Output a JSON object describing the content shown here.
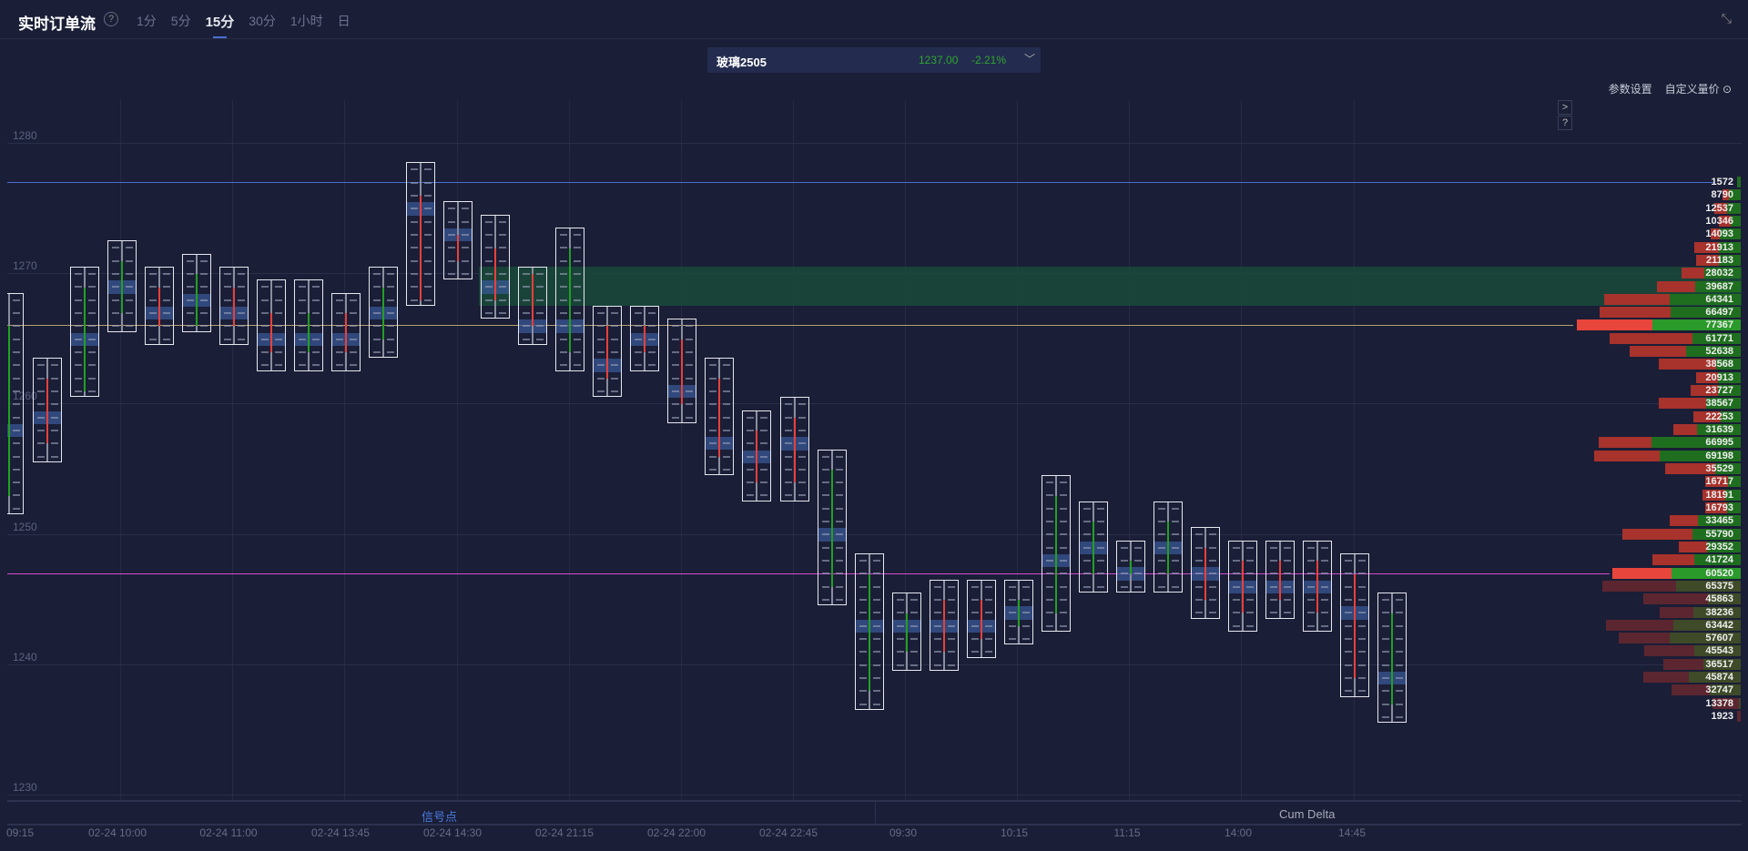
{
  "header": {
    "title": "实时订单流",
    "help_icon": "question-circle-icon",
    "tabs": [
      {
        "label": "1分"
      },
      {
        "label": "5分"
      },
      {
        "label": "15分",
        "active": true
      },
      {
        "label": "30分"
      },
      {
        "label": "1小时"
      },
      {
        "label": "日"
      }
    ],
    "compress_icon": "compress-icon"
  },
  "ticker": {
    "name": "玻璃2505",
    "price": "1237.00",
    "change": "-2.21%",
    "dropdown_icon": "chevron-down-icon"
  },
  "toolbar": {
    "params": "参数设置",
    "custom": "自定义量价",
    "custom_icon": "settings-circle-icon",
    "expand": ">",
    "help": "?"
  },
  "colors": {
    "bg": "#1a1e36",
    "buy": "#1f6e1f",
    "sell": "#a8322c",
    "poc_buy": "#2a9a2a",
    "poc_sell": "#e8463c",
    "zone": "#1a4a3a",
    "blue_line": "#4a6fd1",
    "poc_line": "#b8a070",
    "magenta_line": "#d24ad2"
  },
  "y_axis": {
    "labels": [
      "1280",
      "1270",
      "1260",
      "1250",
      "1240",
      "1230"
    ]
  },
  "x_axis": {
    "labels": [
      "09:15",
      "02-24 10:00",
      "02-24 11:00",
      "02-24 13:45",
      "02-24 14:30",
      "02-24 21:15",
      "02-24 22:00",
      "02-24 22:45",
      "09:30",
      "10:15",
      "11:15",
      "14:00",
      "14:45"
    ]
  },
  "bottom_tabs": {
    "signal": "信号点",
    "cum_delta": "Cum Delta"
  },
  "chart_data": {
    "type": "footprint",
    "ylim": [
      1229,
      1282
    ],
    "lines": {
      "blue": 1277,
      "poc": 1266,
      "magenta": 1247
    },
    "zone": [
      1268,
      1270
    ],
    "candles": [
      [
        1268,
        1252,
        1253,
        1266,
        1258
      ],
      [
        1263,
        1256,
        1262,
        1257,
        1259
      ],
      [
        1270,
        1261,
        1261,
        1269,
        1265
      ],
      [
        1272,
        1266,
        1267,
        1271,
        1269
      ],
      [
        1270,
        1265,
        1269,
        1266,
        1267
      ],
      [
        1271,
        1266,
        1266,
        1270,
        1268
      ],
      [
        1270,
        1265,
        1269,
        1266,
        1267
      ],
      [
        1269,
        1263,
        1267,
        1264,
        1265
      ],
      [
        1269,
        1263,
        1264,
        1267,
        1265
      ],
      [
        1268,
        1263,
        1267,
        1264,
        1265
      ],
      [
        1270,
        1264,
        1265,
        1269,
        1267
      ],
      [
        1278,
        1268,
        1276,
        1268,
        1275
      ],
      [
        1275,
        1270,
        1273,
        1271,
        1273
      ],
      [
        1274,
        1267,
        1272,
        1268,
        1269
      ],
      [
        1270,
        1265,
        1270,
        1266,
        1266
      ],
      [
        1273,
        1263,
        1264,
        1272,
        1266
      ],
      [
        1267,
        1261,
        1266,
        1262,
        1263
      ],
      [
        1267,
        1263,
        1266,
        1264,
        1265
      ],
      [
        1266,
        1259,
        1265,
        1260,
        1261
      ],
      [
        1263,
        1255,
        1262,
        1256,
        1257
      ],
      [
        1259,
        1253,
        1258,
        1254,
        1256
      ],
      [
        1260,
        1253,
        1259,
        1254,
        1257
      ],
      [
        1256,
        1245,
        1246,
        1255,
        1250
      ],
      [
        1248,
        1237,
        1238,
        1247,
        1243
      ],
      [
        1245,
        1240,
        1241,
        1244,
        1243
      ],
      [
        1246,
        1240,
        1245,
        1241,
        1243
      ],
      [
        1246,
        1241,
        1245,
        1242,
        1243
      ],
      [
        1246,
        1242,
        1243,
        1245,
        1244
      ],
      [
        1254,
        1243,
        1244,
        1253,
        1248
      ],
      [
        1252,
        1246,
        1247,
        1251,
        1249
      ],
      [
        1249,
        1246,
        1247,
        1248,
        1247
      ],
      [
        1252,
        1246,
        1247,
        1251,
        1249
      ],
      [
        1250,
        1244,
        1249,
        1245,
        1247
      ],
      [
        1249,
        1243,
        1248,
        1244,
        1246
      ],
      [
        1249,
        1244,
        1248,
        1245,
        1246
      ],
      [
        1249,
        1243,
        1248,
        1244,
        1246
      ],
      [
        1248,
        1238,
        1247,
        1239,
        1244
      ],
      [
        1245,
        1236,
        1237,
        1244,
        1239
      ]
    ],
    "profile": {
      "top_price": 1277,
      "rows": [
        [
          1572,
          1.0
        ],
        [
          8790,
          0.62
        ],
        [
          12537,
          0.53
        ],
        [
          10346,
          0.44
        ],
        [
          14093,
          0.71
        ],
        [
          21913,
          0.47
        ],
        [
          21183,
          0.49
        ],
        [
          28032,
          0.61
        ],
        [
          39687,
          0.54
        ],
        [
          64341,
          0.52
        ],
        [
          66497,
          0.5
        ],
        [
          77367,
          0.54
        ],
        [
          61771,
          0.37
        ],
        [
          52638,
          0.49
        ],
        [
          38568,
          0.3
        ],
        [
          20913,
          0.52
        ],
        [
          23727,
          0.45
        ],
        [
          38567,
          0.42
        ],
        [
          22253,
          0.42
        ],
        [
          31639,
          0.65
        ],
        [
          66995,
          0.63
        ],
        [
          69198,
          0.55
        ],
        [
          35529,
          0.34
        ],
        [
          16717,
          0.37
        ],
        [
          18191,
          0.4
        ],
        [
          16793,
          0.39
        ],
        [
          33465,
          0.6
        ],
        [
          55790,
          0.41
        ],
        [
          29352,
          0.54
        ],
        [
          41724,
          0.53
        ],
        [
          60520,
          0.54
        ],
        [
          65375,
          0.47
        ],
        [
          45863,
          0.34
        ],
        [
          38236,
          0.59
        ],
        [
          63442,
          0.5
        ],
        [
          57607,
          0.58
        ],
        [
          45543,
          0.48
        ],
        [
          36517,
          0.48
        ],
        [
          45874,
          0.53
        ],
        [
          32747,
          0.45
        ],
        [
          13378,
          0.08
        ],
        [
          1923,
          0
        ]
      ]
    }
  }
}
